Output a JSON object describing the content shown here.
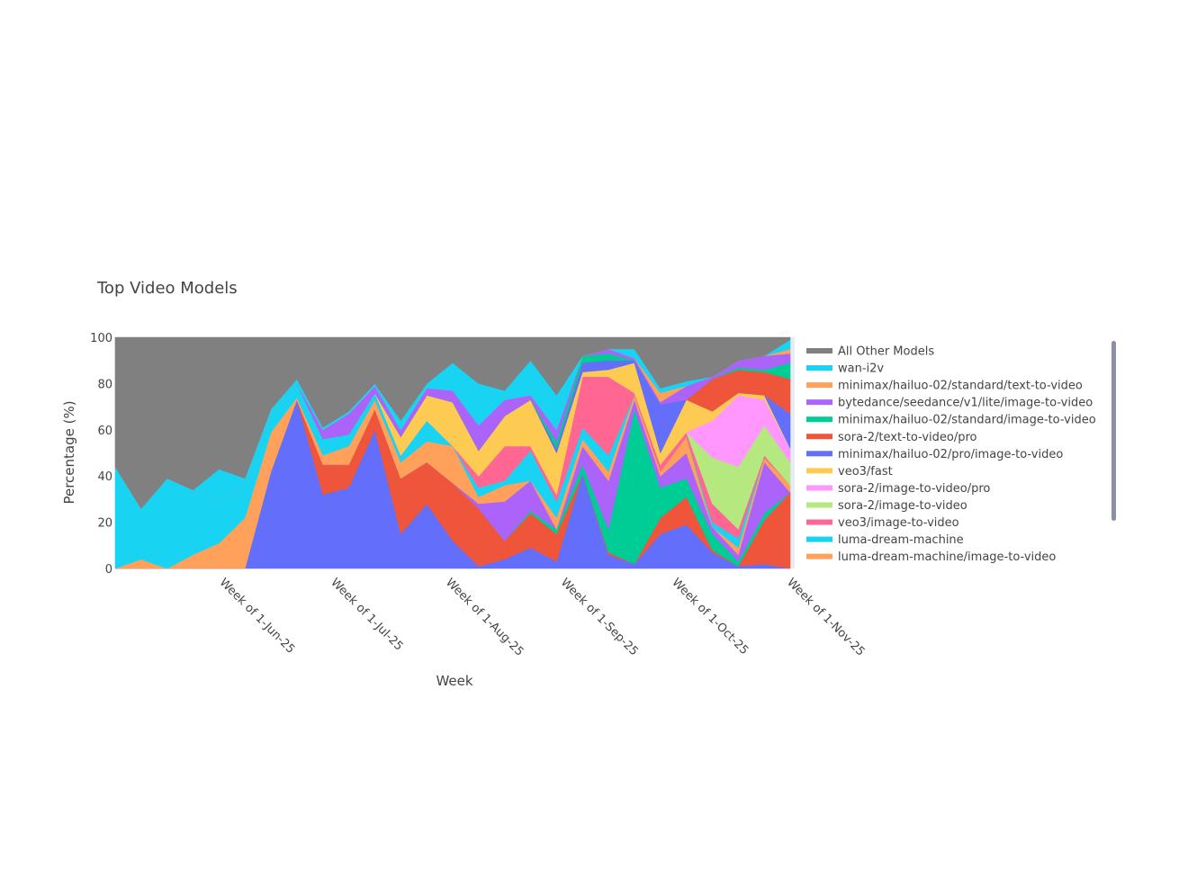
{
  "chart_data": {
    "type": "area",
    "stacked": true,
    "title": "Top Video Models",
    "xlabel": "Week",
    "ylabel": "Percentage (%)",
    "ylim": [
      0,
      100
    ],
    "yticks": [
      "0",
      "20",
      "40",
      "60",
      "80",
      "100"
    ],
    "xticks": [
      {
        "date": "2025-06-01",
        "label": "Week of 1-Jun-25"
      },
      {
        "date": "2025-07-01",
        "label": "Week of 1-Jul-25"
      },
      {
        "date": "2025-08-01",
        "label": "Week of 1-Aug-25"
      },
      {
        "date": "2025-09-01",
        "label": "Week of 1-Sep-25"
      },
      {
        "date": "2025-10-01",
        "label": "Week of 1-Oct-25"
      },
      {
        "date": "2025-11-01",
        "label": "Week of 1-Nov-25"
      }
    ],
    "x": [
      "2025-05-03",
      "2025-05-10",
      "2025-05-17",
      "2025-05-24",
      "2025-05-31",
      "2025-06-07",
      "2025-06-14",
      "2025-06-21",
      "2025-06-28",
      "2025-07-05",
      "2025-07-12",
      "2025-07-19",
      "2025-07-26",
      "2025-08-02",
      "2025-08-09",
      "2025-08-16",
      "2025-08-23",
      "2025-08-30",
      "2025-09-06",
      "2025-09-13",
      "2025-09-20",
      "2025-09-27",
      "2025-10-04",
      "2025-10-11",
      "2025-10-18",
      "2025-10-25",
      "2025-11-01"
    ],
    "legend_position": "right",
    "series": [
      {
        "color": "#636efa",
        "values": [
          0,
          0,
          0,
          0,
          0,
          0,
          42,
          73,
          32,
          35,
          60,
          15,
          28,
          12,
          1,
          4,
          9,
          3,
          41,
          6,
          2,
          15,
          19,
          7,
          1,
          2,
          0
        ]
      },
      {
        "color": "#EF553B",
        "values": [
          0,
          0,
          0,
          0,
          0,
          0,
          0,
          0,
          13,
          10,
          9,
          24,
          18,
          25,
          25,
          8,
          15,
          12,
          0,
          1,
          0,
          7,
          12,
          1,
          0,
          19,
          33
        ]
      },
      {
        "color": "#00cc96",
        "values": [
          0,
          0,
          0,
          0,
          0,
          0,
          0,
          0,
          0,
          0,
          0,
          0,
          0,
          0,
          0,
          0,
          1,
          2,
          4,
          10,
          67,
          13,
          8,
          7,
          2,
          3,
          0
        ]
      },
      {
        "color": "#ab63fa",
        "values": [
          0,
          0,
          0,
          0,
          0,
          0,
          0,
          0,
          0,
          0,
          0,
          0,
          0,
          0,
          2,
          17,
          13,
          0,
          8,
          21,
          4,
          5,
          11,
          3,
          3,
          22,
          0
        ]
      },
      {
        "name": "luma-dream-machine/image-to-video",
        "color": "#FFA15A",
        "values": [
          0,
          4,
          0,
          6,
          11,
          22,
          17,
          1,
          4,
          8,
          4,
          7,
          9,
          16,
          3,
          7,
          0,
          5,
          3,
          4,
          2,
          2,
          7,
          0,
          3,
          2,
          3
        ]
      },
      {
        "name": "luma-dream-machine",
        "color": "#19d3f3",
        "values": [
          44,
          22,
          39,
          28,
          18,
          14,
          8,
          6,
          7,
          5,
          3,
          3,
          9,
          0,
          4,
          2,
          13,
          7,
          5,
          7,
          0,
          0,
          0,
          2,
          4,
          0,
          0
        ]
      },
      {
        "name": "veo3/image-to-video",
        "color": "#FF6692",
        "values": [
          0,
          0,
          0,
          0,
          0,
          0,
          0,
          0,
          0,
          0,
          0,
          0,
          0,
          0,
          5,
          15,
          2,
          3,
          22,
          34,
          1,
          3,
          2,
          8,
          4,
          1,
          0
        ]
      },
      {
        "name": "sora-2/image-to-video",
        "color": "#B6E880",
        "values": [
          0,
          0,
          0,
          0,
          0,
          0,
          0,
          0,
          0,
          0,
          0,
          0,
          0,
          0,
          0,
          0,
          0,
          0,
          0,
          0,
          0,
          0,
          0,
          20,
          27,
          13,
          10
        ]
      },
      {
        "name": "sora-2/image-to-video/pro",
        "color": "#FF97FF",
        "values": [
          0,
          0,
          0,
          0,
          0,
          0,
          0,
          0,
          0,
          0,
          0,
          0,
          0,
          0,
          0,
          0,
          0,
          0,
          0,
          0,
          0,
          0,
          0,
          16,
          31,
          11,
          6
        ]
      },
      {
        "name": "veo3/fast",
        "color": "#FECB52",
        "values": [
          0,
          0,
          0,
          0,
          0,
          0,
          0,
          0,
          0,
          0,
          0,
          8,
          11,
          19,
          11,
          13,
          20,
          18,
          2,
          3,
          13,
          5,
          14,
          4,
          1,
          2,
          0
        ]
      },
      {
        "name": "minimax/hailuo-02/pro/image-to-video",
        "color": "#636efa",
        "values": [
          0,
          0,
          0,
          0,
          0,
          0,
          0,
          0,
          0,
          0,
          0,
          0,
          0,
          0,
          0,
          0,
          0,
          2,
          4,
          4,
          1,
          21,
          0,
          0,
          0,
          0,
          15
        ]
      },
      {
        "name": "sora-2/text-to-video/pro",
        "color": "#EF553B",
        "values": [
          0,
          0,
          0,
          0,
          0,
          0,
          0,
          0,
          0,
          0,
          0,
          0,
          0,
          0,
          0,
          0,
          0,
          0,
          0,
          0,
          0,
          0,
          0,
          14,
          10,
          10,
          15
        ]
      },
      {
        "name": "minimax/hailuo-02/standard/image-to-video",
        "color": "#00cc96",
        "values": [
          0,
          0,
          0,
          0,
          0,
          0,
          0,
          0,
          0,
          0,
          0,
          0,
          0,
          0,
          0,
          0,
          0,
          3,
          3,
          3,
          0,
          0,
          0,
          0,
          1,
          1,
          7
        ]
      },
      {
        "name": "bytedance/seedance/v1/lite/image-to-video",
        "color": "#ab63fa",
        "values": [
          0,
          0,
          0,
          0,
          0,
          0,
          0,
          0,
          4,
          9,
          3,
          3,
          3,
          5,
          11,
          7,
          2,
          5,
          0,
          2,
          1,
          1,
          6,
          1,
          3,
          6,
          4
        ]
      },
      {
        "name": "minimax/hailuo-02/standard/text-to-video",
        "color": "#FFA15A",
        "values": [
          0,
          0,
          0,
          0,
          0,
          0,
          0,
          0,
          0,
          0,
          0,
          0,
          0,
          0,
          0,
          0,
          0,
          0,
          0,
          0,
          0,
          4,
          0,
          0,
          0,
          0,
          2
        ]
      },
      {
        "name": "wan-i2v",
        "color": "#19d3f3",
        "values": [
          0,
          0,
          0,
          0,
          14,
          3,
          2,
          2,
          1,
          1,
          1,
          4,
          2,
          12,
          18,
          4,
          15,
          15,
          0,
          0,
          4,
          2,
          2,
          0,
          0,
          0,
          4
        ]
      },
      {
        "name": "All Other Models",
        "color": "#808080",
        "values": [
          56,
          74,
          61,
          66,
          57,
          61,
          31,
          18,
          39,
          32,
          20,
          36,
          20,
          11,
          20,
          23,
          10,
          25,
          8,
          5,
          5,
          22,
          19,
          17,
          10,
          8,
          1
        ]
      }
    ]
  }
}
